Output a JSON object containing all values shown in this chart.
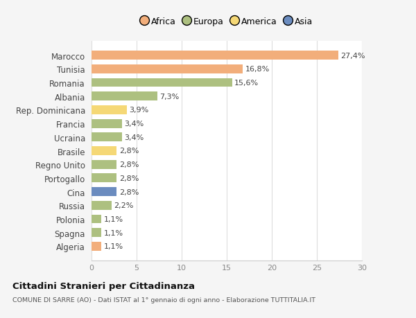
{
  "countries": [
    "Marocco",
    "Tunisia",
    "Romania",
    "Albania",
    "Rep. Dominicana",
    "Francia",
    "Ucraina",
    "Brasile",
    "Regno Unito",
    "Portogallo",
    "Cina",
    "Russia",
    "Polonia",
    "Spagna",
    "Algeria"
  ],
  "values": [
    27.4,
    16.8,
    15.6,
    7.3,
    3.9,
    3.4,
    3.4,
    2.8,
    2.8,
    2.8,
    2.8,
    2.2,
    1.1,
    1.1,
    1.1
  ],
  "labels": [
    "27,4%",
    "16,8%",
    "15,6%",
    "7,3%",
    "3,9%",
    "3,4%",
    "3,4%",
    "2,8%",
    "2,8%",
    "2,8%",
    "2,8%",
    "2,2%",
    "1,1%",
    "1,1%",
    "1,1%"
  ],
  "colors": [
    "#f2ae7b",
    "#f2ae7b",
    "#adc080",
    "#adc080",
    "#f5d876",
    "#adc080",
    "#adc080",
    "#f5d876",
    "#adc080",
    "#adc080",
    "#6b8cbf",
    "#adc080",
    "#adc080",
    "#adc080",
    "#f2ae7b"
  ],
  "legend_labels": [
    "Africa",
    "Europa",
    "America",
    "Asia"
  ],
  "legend_colors": [
    "#f2ae7b",
    "#adc080",
    "#f5d876",
    "#6b8cbf"
  ],
  "title": "Cittadini Stranieri per Cittadinanza",
  "subtitle": "COMUNE DI SARRE (AO) - Dati ISTAT al 1° gennaio di ogni anno - Elaborazione TUTTITALIA.IT",
  "xlim": [
    0,
    30
  ],
  "xticks": [
    0,
    5,
    10,
    15,
    20,
    25,
    30
  ],
  "background_color": "#f5f5f5",
  "plot_bg_color": "#ffffff",
  "bar_height": 0.65,
  "label_fontsize": 8,
  "ytick_fontsize": 8.5,
  "xtick_fontsize": 8
}
